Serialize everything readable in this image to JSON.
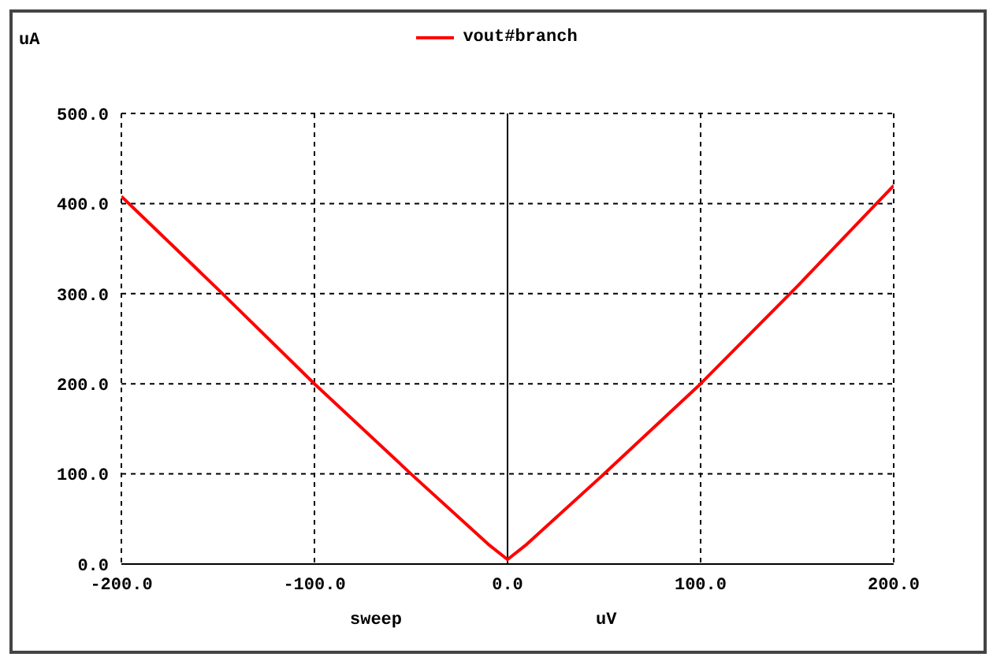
{
  "chart_data": {
    "type": "line",
    "xlabel": "sweep",
    "ylabel": "uA",
    "annotations": [
      "uV"
    ],
    "x": [
      -200,
      -150,
      -100,
      -50,
      -10,
      0,
      10,
      50,
      100,
      150,
      200
    ],
    "series": [
      {
        "name": "vout#branch",
        "color": "#ff0000",
        "values": [
          408,
          305,
          200,
          100,
          22,
          5,
          22,
          100,
          200,
          308,
          420
        ]
      }
    ],
    "xlim": [
      -200,
      200
    ],
    "xticks": [
      {
        "value": -200,
        "label": "-200.0"
      },
      {
        "value": -100,
        "label": "-100.0"
      },
      {
        "value": 0,
        "label": "0.0"
      },
      {
        "value": 100,
        "label": "100.0"
      },
      {
        "value": 200,
        "label": "200.0"
      }
    ],
    "ylim": [
      0,
      500
    ],
    "yticks": [
      {
        "value": 0,
        "label": "0.0"
      },
      {
        "value": 100,
        "label": "100.0"
      },
      {
        "value": 200,
        "label": "200.0"
      },
      {
        "value": 300,
        "label": "300.0"
      },
      {
        "value": 400,
        "label": "400.0"
      },
      {
        "value": 500,
        "label": "500.0"
      }
    ],
    "ref_lines": [
      {
        "axis": "x",
        "value": 0,
        "color": "#000000"
      }
    ],
    "grid": true,
    "legend": "top",
    "marker": "none",
    "line_style": "solid"
  }
}
